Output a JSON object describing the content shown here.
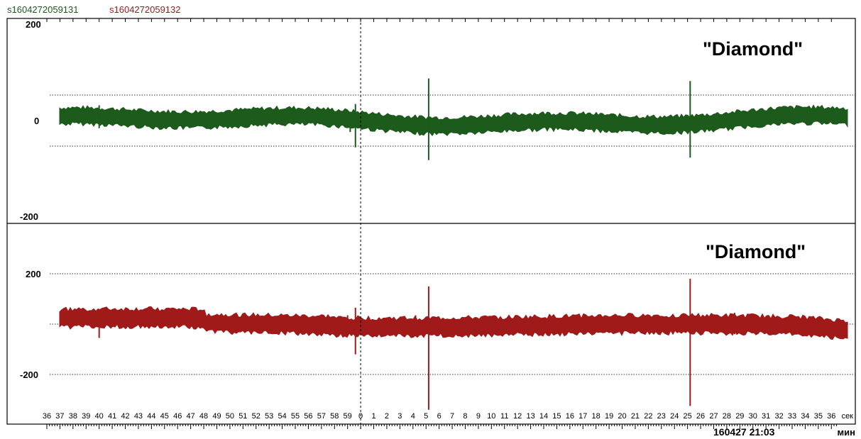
{
  "legend": [
    {
      "label": "s1604272059131",
      "color": "#1c5b1c"
    },
    {
      "label": "s1604272059132",
      "color": "#a01a1a"
    }
  ],
  "time_axis": {
    "sec_labels": [
      "36",
      "37",
      "38",
      "39",
      "40",
      "41",
      "42",
      "43",
      "44",
      "45",
      "46",
      "47",
      "48",
      "49",
      "50",
      "51",
      "52",
      "53",
      "54",
      "55",
      "56",
      "57",
      "58",
      "59",
      "0",
      "1",
      "2",
      "3",
      "4",
      "5",
      "6",
      "7",
      "8",
      "9",
      "10",
      "11",
      "12",
      "13",
      "14",
      "15",
      "16",
      "17",
      "18",
      "19",
      "20",
      "21",
      "22",
      "23",
      "24",
      "25",
      "26",
      "27",
      "28",
      "29",
      "30",
      "31",
      "32",
      "33",
      "34",
      "35",
      "36"
    ],
    "sec_unit": "сек",
    "timestamp": "160427 21:03",
    "min_unit": "мин"
  },
  "chart_data": [
    {
      "type": "line",
      "series": [
        {
          "name": "s1604272059131",
          "color": "#1c5b1c"
        }
      ],
      "annotation": "\"Diamond\"",
      "ylim": [
        -200,
        200
      ],
      "y_tick_labels": [
        "200",
        "0",
        "-200"
      ],
      "baseline_noise_amplitude": 12,
      "spikes": [
        {
          "t": 40.0,
          "min": -30,
          "max": 60
        },
        {
          "t": 59.2,
          "min": -45,
          "max": 35
        },
        {
          "t": 59.6,
          "min": -105,
          "max": 65
        },
        {
          "t": 64.2,
          "min": -40,
          "max": 20
        },
        {
          "t": 65.2,
          "min": -155,
          "max": 165
        },
        {
          "t": 85.2,
          "min": -145,
          "max": 155
        },
        {
          "t": 88.8,
          "min": -20,
          "max": 35
        }
      ]
    },
    {
      "type": "line",
      "series": [
        {
          "name": "s1604272059132",
          "color": "#a01a1a"
        }
      ],
      "annotation": "\"Diamond\"",
      "ylim": [
        -370,
        200
      ],
      "y_tick_labels": [
        "200",
        "-200"
      ],
      "baseline_noise_amplitude": 13,
      "spikes": [
        {
          "t": 40.0,
          "min": -55,
          "max": 55
        },
        {
          "t": 59.0,
          "min": -40,
          "max": 35
        },
        {
          "t": 59.6,
          "min": -120,
          "max": 65
        },
        {
          "t": 64.2,
          "min": -40,
          "max": 35
        },
        {
          "t": 65.2,
          "min": -340,
          "max": 150
        },
        {
          "t": 85.2,
          "min": -325,
          "max": 180
        },
        {
          "t": 88.6,
          "min": -40,
          "max": 45
        },
        {
          "t": 89.0,
          "min": -30,
          "max": 35
        }
      ]
    }
  ]
}
